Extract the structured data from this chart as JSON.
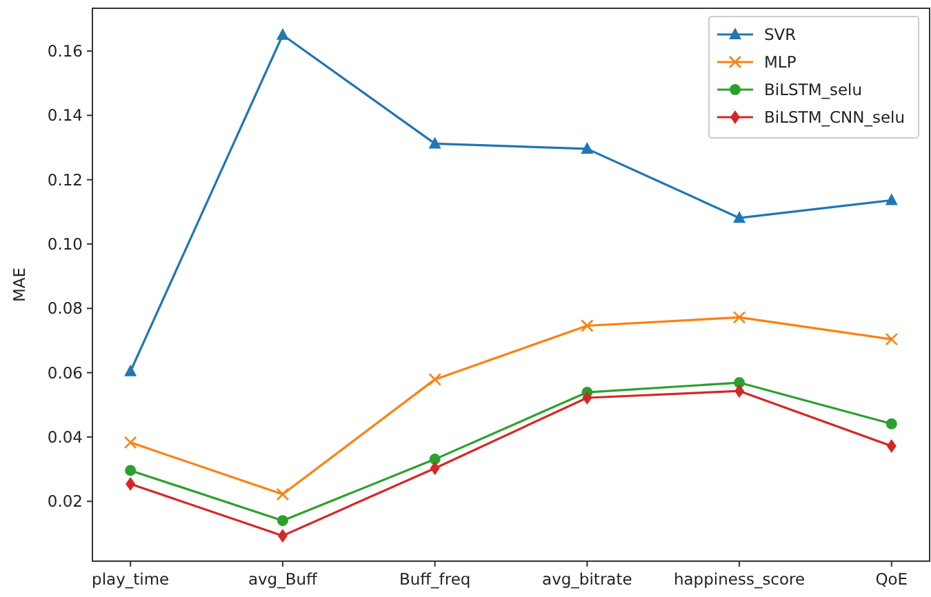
{
  "chart_data": {
    "type": "line",
    "ylabel": "MAE",
    "categories": [
      "play_time",
      "avg_Buff",
      "Buff_freq",
      "avg_bitrate",
      "happiness_score",
      "QoE"
    ],
    "ylim": [
      0.0014,
      0.1733
    ],
    "yticks": [
      {
        "value": 0.02,
        "label": "0.02"
      },
      {
        "value": 0.04,
        "label": "0.04"
      },
      {
        "value": 0.06,
        "label": "0.06"
      },
      {
        "value": 0.08,
        "label": "0.08"
      },
      {
        "value": 0.1,
        "label": "0.10"
      },
      {
        "value": 0.12,
        "label": "0.12"
      },
      {
        "value": 0.14,
        "label": "0.14"
      },
      {
        "value": 0.16,
        "label": "0.16"
      }
    ],
    "grid": false,
    "legend": "top right",
    "series": [
      {
        "name": "SVR",
        "color": "#1f77b4",
        "marker": "triangle",
        "values": [
          0.0604,
          0.165,
          0.1312,
          0.1296,
          0.1081,
          0.1136
        ]
      },
      {
        "name": "MLP",
        "color": "#ff7f0e",
        "marker": "cross",
        "values": [
          0.0383,
          0.0222,
          0.0579,
          0.0746,
          0.0772,
          0.0704
        ]
      },
      {
        "name": "BiLSTM_selu",
        "color": "#2ca02c",
        "marker": "circle",
        "values": [
          0.0296,
          0.014,
          0.0331,
          0.0539,
          0.0569,
          0.0441
        ]
      },
      {
        "name": "BiLSTM_CNN_selu",
        "color": "#d62728",
        "marker": "diamond",
        "values": [
          0.0254,
          0.0093,
          0.0303,
          0.0522,
          0.0543,
          0.0372
        ]
      }
    ]
  }
}
